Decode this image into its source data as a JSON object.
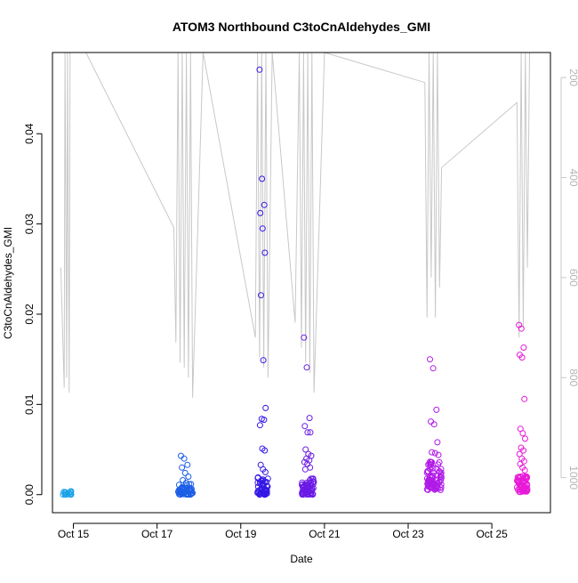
{
  "chart_data": {
    "type": "scatter",
    "title": "ATOM3 Northbound C3toCnAldehydes_GMI",
    "xlabel": "Date",
    "ylabel": "C3toCnAldehydes_GMI",
    "ylim": [
      -0.002,
      0.049
    ],
    "y_ticks": [
      0.0,
      0.01,
      0.02,
      0.03,
      0.04
    ],
    "y_tick_labels": [
      "0.00",
      "0.01",
      "0.02",
      "0.03",
      "0.04"
    ],
    "x_range_days": [
      14.5,
      26.4
    ],
    "x_ticks": [
      {
        "day": 15,
        "label": "Oct 15"
      },
      {
        "day": 17,
        "label": "Oct 17"
      },
      {
        "day": 19,
        "label": "Oct 19"
      },
      {
        "day": 21,
        "label": "Oct 21"
      },
      {
        "day": 23,
        "label": "Oct 23"
      },
      {
        "day": 25,
        "label": "Oct 25"
      }
    ],
    "secondary_axis": {
      "range": [
        1070,
        150
      ],
      "ticks": [
        200,
        400,
        600,
        800,
        1000
      ],
      "color": "#c8c8c8"
    },
    "grid": false,
    "secondary_line_color": "#c8c8c8",
    "point_groups": [
      {
        "color": "#1aa2e8",
        "x": [
          14.75,
          14.95
        ],
        "y_low": 0.0,
        "y_high": 0.0004,
        "n": 22,
        "outliers": []
      },
      {
        "color": "#1c5ee6",
        "x": [
          17.5,
          17.85
        ],
        "y_low": 0.0,
        "y_high": 0.0012,
        "n": 60,
        "outliers": [
          0.0043,
          0.004,
          0.0033,
          0.003,
          0.0024,
          0.002,
          0.0016,
          0.0013
        ]
      },
      {
        "color": "#3418e6",
        "x": [
          19.4,
          19.65
        ],
        "y_low": 0.0,
        "y_high": 0.002,
        "n": 55,
        "outliers": [
          0.0471,
          0.035,
          0.0321,
          0.0312,
          0.0295,
          0.0268,
          0.0221,
          0.0149,
          0.0096,
          0.0084,
          0.0083,
          0.0077,
          0.0051,
          0.0049,
          0.0033,
          0.0028,
          0.0025
        ]
      },
      {
        "color": "#6a1ae6",
        "x": [
          20.45,
          20.75
        ],
        "y_low": 0.0,
        "y_high": 0.0018,
        "n": 55,
        "outliers": [
          0.0174,
          0.0141,
          0.0085,
          0.0076,
          0.0069,
          0.0069,
          0.005,
          0.0045,
          0.0043,
          0.004,
          0.0038,
          0.0036,
          0.0034,
          0.003,
          0.0028
        ]
      },
      {
        "color": "#b01ae8",
        "x": [
          23.45,
          23.8
        ],
        "y_low": 0.0005,
        "y_high": 0.0038,
        "n": 80,
        "outliers": [
          0.015,
          0.014,
          0.0094,
          0.0081,
          0.0078,
          0.0058,
          0.0047,
          0.0046,
          0.0044
        ]
      },
      {
        "color": "#e81ad8",
        "x": [
          25.6,
          25.85
        ],
        "y_low": 0.0003,
        "y_high": 0.0022,
        "n": 60,
        "outliers": [
          0.0188,
          0.0184,
          0.0163,
          0.0155,
          0.0152,
          0.0106,
          0.0073,
          0.0068,
          0.0062,
          0.0052,
          0.0049,
          0.0045,
          0.004,
          0.0037,
          0.0034,
          0.003,
          0.0027
        ]
      }
    ],
    "pressure_line": [
      [
        14.7,
        580
      ],
      [
        14.78,
        820
      ],
      [
        14.8,
        150
      ],
      [
        14.84,
        800
      ],
      [
        14.86,
        150
      ],
      [
        14.9,
        830
      ],
      [
        14.92,
        150
      ],
      [
        14.95,
        150
      ],
      [
        15.3,
        150
      ],
      [
        17.4,
        500
      ],
      [
        17.45,
        730
      ],
      [
        17.5,
        150
      ],
      [
        17.55,
        770
      ],
      [
        17.6,
        150
      ],
      [
        17.65,
        780
      ],
      [
        17.7,
        150
      ],
      [
        17.75,
        800
      ],
      [
        17.8,
        150
      ],
      [
        17.85,
        840
      ],
      [
        18.1,
        150
      ],
      [
        19.35,
        720
      ],
      [
        19.4,
        150
      ],
      [
        19.45,
        760
      ],
      [
        19.5,
        150
      ],
      [
        19.55,
        780
      ],
      [
        19.6,
        150
      ],
      [
        19.65,
        800
      ],
      [
        19.75,
        150
      ],
      [
        20.3,
        690
      ],
      [
        20.4,
        150
      ],
      [
        20.45,
        740
      ],
      [
        20.5,
        150
      ],
      [
        20.55,
        770
      ],
      [
        20.6,
        150
      ],
      [
        20.65,
        790
      ],
      [
        20.7,
        150
      ],
      [
        20.75,
        830
      ],
      [
        21.0,
        150
      ],
      [
        23.4,
        210
      ],
      [
        23.45,
        680
      ],
      [
        23.5,
        150
      ],
      [
        23.55,
        600
      ],
      [
        23.6,
        150
      ],
      [
        23.65,
        680
      ],
      [
        23.7,
        150
      ],
      [
        23.75,
        620
      ],
      [
        23.8,
        380
      ],
      [
        25.6,
        250
      ],
      [
        25.65,
        720
      ],
      [
        25.7,
        150
      ],
      [
        25.75,
        700
      ],
      [
        25.8,
        150
      ],
      [
        25.85,
        580
      ],
      [
        25.9,
        150
      ]
    ]
  }
}
